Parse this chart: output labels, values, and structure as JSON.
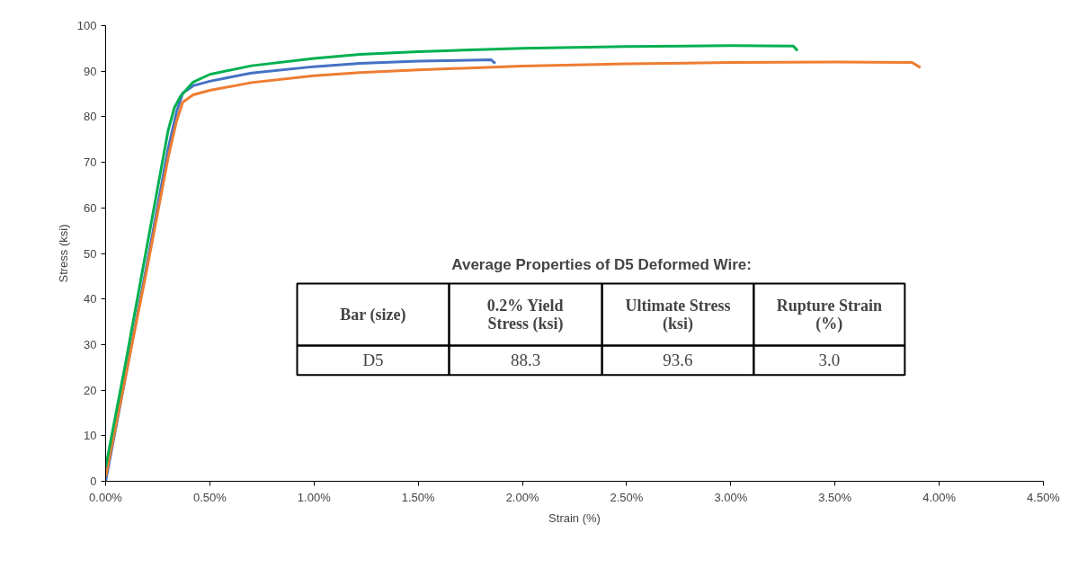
{
  "chart_data": {
    "type": "line",
    "xlabel": "Strain (%)",
    "ylabel": "Stress (ksi)",
    "xlim": [
      0,
      4.5
    ],
    "ylim": [
      0,
      100
    ],
    "xticks": [
      {
        "value": 0,
        "label": "0.00%"
      },
      {
        "value": 0.5,
        "label": "0.50%"
      },
      {
        "value": 1,
        "label": "1.00%"
      },
      {
        "value": 1.5,
        "label": "1.50%"
      },
      {
        "value": 2,
        "label": "2.00%"
      },
      {
        "value": 2.5,
        "label": "2.50%"
      },
      {
        "value": 3,
        "label": "3.00%"
      },
      {
        "value": 3.5,
        "label": "3.50%"
      },
      {
        "value": 4,
        "label": "4.00%"
      },
      {
        "value": 4.5,
        "label": "4.50%"
      }
    ],
    "yticks": [
      0,
      10,
      20,
      30,
      40,
      50,
      60,
      70,
      80,
      90,
      100
    ],
    "grid": false,
    "marker": "none",
    "line_style": "solid",
    "series": [
      {
        "color": "#4472c4",
        "x": [
          0,
          0.1,
          0.2,
          0.3,
          0.34,
          0.37,
          0.42,
          0.5,
          0.7,
          1.0,
          1.22,
          1.5,
          1.85,
          1.87
        ],
        "values": [
          0,
          24,
          48,
          73,
          81,
          85.2,
          86.8,
          87.8,
          89.6,
          91.0,
          91.7,
          92.2,
          92.5,
          91.7
        ]
      },
      {
        "color": "#ed7d31",
        "x": [
          0,
          0.1,
          0.2,
          0.3,
          0.34,
          0.37,
          0.42,
          0.5,
          0.7,
          1.0,
          1.22,
          1.5,
          2.0,
          2.5,
          3.0,
          3.5,
          3.87,
          3.91
        ],
        "values": [
          1,
          24,
          47,
          71,
          79,
          83.2,
          84.8,
          85.8,
          87.5,
          89.0,
          89.7,
          90.3,
          91.1,
          91.6,
          91.9,
          92.0,
          91.9,
          90.8
        ]
      },
      {
        "color": "#00b050",
        "x": [
          0,
          0.1,
          0.2,
          0.3,
          0.33,
          0.358,
          0.42,
          0.5,
          0.7,
          1.0,
          1.22,
          1.5,
          2.0,
          2.5,
          3.0,
          3.3,
          3.32
        ],
        "values": [
          3,
          27,
          52,
          77,
          82,
          84.4,
          87.6,
          89.3,
          91.2,
          92.8,
          93.7,
          94.3,
          95.0,
          95.4,
          95.6,
          95.5,
          94.5
        ]
      }
    ],
    "annotations": [
      "Average Properties of D5 Deformed Wire:",
      "Bar (size)",
      "0.2% Yield Stress (ksi)",
      "Ultimate Stress (ksi)",
      "Rupture Strain (%)",
      "D5",
      "88.3",
      "93.6",
      "3.0"
    ]
  }
}
